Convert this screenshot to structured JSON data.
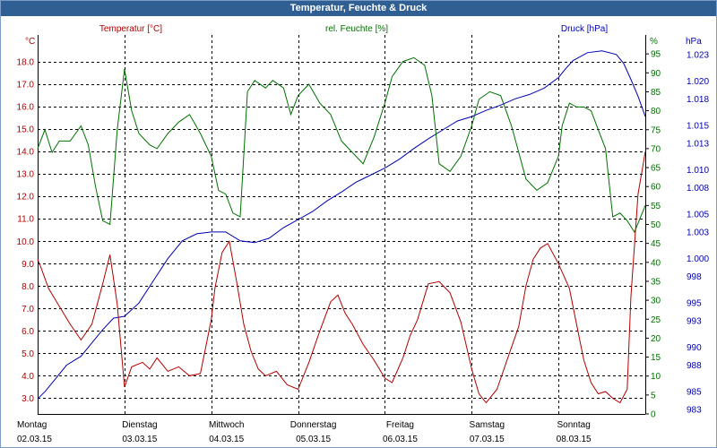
{
  "window": {
    "title": "Temperatur, Feuchte & Druck"
  },
  "colors": {
    "temperature": "#b00000",
    "humidity": "#007000",
    "pressure": "#0000b0",
    "grid": "#000000",
    "titlebar": "#2f5f93"
  },
  "chart_data": {
    "type": "line",
    "title": "Temperatur, Feuchte & Druck",
    "x_start": "02.03.15 00:00",
    "x_end": "08.03.15 24:00",
    "days": [
      {
        "weekday": "Montag",
        "date": "02.03.15"
      },
      {
        "weekday": "Dienstag",
        "date": "03.03.15"
      },
      {
        "weekday": "Mittwoch",
        "date": "04.03.15"
      },
      {
        "weekday": "Donnerstag",
        "date": "05.03.15"
      },
      {
        "weekday": "Freitag",
        "date": "06.03.15"
      },
      {
        "weekday": "Samstag",
        "date": "07.03.15"
      },
      {
        "weekday": "Sonntag",
        "date": "08.03.15"
      }
    ],
    "axes": {
      "temperature": {
        "label": "Temperatur [°C]",
        "unit": "°C",
        "ylim": [
          2.3,
          19.2
        ],
        "ticks": [
          "3.0",
          "4.0",
          "5.0",
          "6.0",
          "7.0",
          "8.0",
          "9.0",
          "10.0",
          "11.0",
          "12.0",
          "13.0",
          "14.0",
          "15.0",
          "16.0",
          "17.0",
          "18.0"
        ]
      },
      "humidity": {
        "label": "rel. Feuchte [%]",
        "unit": "%",
        "ylim": [
          0,
          100
        ],
        "ticks": [
          "0",
          "5",
          "10",
          "15",
          "20",
          "25",
          "30",
          "35",
          "40",
          "45",
          "50",
          "55",
          "60",
          "65",
          "70",
          "75",
          "80",
          "85",
          "90",
          "95"
        ]
      },
      "pressure": {
        "label": "Druck [hPa]",
        "unit": "hPa",
        "ylim": [
          982.5,
          1025.2
        ],
        "ticks": [
          "983",
          "985",
          "988",
          "990",
          "993",
          "995",
          "998",
          "1.000",
          "1.003",
          "1.005",
          "1.008",
          "1.010",
          "1.013",
          "1.015",
          "1.018",
          "1.020",
          "1.023"
        ]
      }
    },
    "grid": true,
    "series": [
      {
        "name": "Temperatur [°C]",
        "axis": "temperature",
        "color": "#b00000",
        "points": [
          [
            "02.03.15 00:00",
            9.2
          ],
          [
            "02.03.15 01:00",
            8.8
          ],
          [
            "02.03.15 03:00",
            7.9
          ],
          [
            "02.03.15 06:00",
            7.1
          ],
          [
            "02.03.15 09:00",
            6.3
          ],
          [
            "02.03.15 12:00",
            5.6
          ],
          [
            "02.03.15 15:00",
            6.3
          ],
          [
            "02.03.15 18:00",
            8.1
          ],
          [
            "02.03.15 20:00",
            9.4
          ],
          [
            "02.03.15 22:00",
            7.2
          ],
          [
            "03.03.15 00:00",
            3.5
          ],
          [
            "03.03.15 02:00",
            4.4
          ],
          [
            "03.03.15 05:00",
            4.6
          ],
          [
            "03.03.15 07:00",
            4.3
          ],
          [
            "03.03.15 09:00",
            4.8
          ],
          [
            "03.03.15 12:00",
            4.2
          ],
          [
            "03.03.15 15:00",
            4.4
          ],
          [
            "03.03.15 18:00",
            4.0
          ],
          [
            "03.03.15 21:00",
            4.1
          ],
          [
            "04.03.15 00:00",
            6.5
          ],
          [
            "04.03.15 01:00",
            7.9
          ],
          [
            "04.03.15 03:00",
            9.5
          ],
          [
            "04.03.15 05:00",
            10.0
          ],
          [
            "04.03.15 07:00",
            8.2
          ],
          [
            "04.03.15 09:00",
            6.3
          ],
          [
            "04.03.15 11:00",
            5.1
          ],
          [
            "04.03.15 13:00",
            4.3
          ],
          [
            "04.03.15 15:00",
            4.0
          ],
          [
            "04.03.15 18:00",
            4.2
          ],
          [
            "04.03.15 21:00",
            3.6
          ],
          [
            "05.03.15 00:00",
            3.4
          ],
          [
            "05.03.15 03:00",
            4.6
          ],
          [
            "05.03.15 06:00",
            6.0
          ],
          [
            "05.03.15 09:00",
            7.3
          ],
          [
            "05.03.15 11:00",
            7.6
          ],
          [
            "05.03.15 13:00",
            6.8
          ],
          [
            "05.03.15 15:00",
            6.3
          ],
          [
            "05.03.15 18:00",
            5.4
          ],
          [
            "05.03.15 21:00",
            4.7
          ],
          [
            "06.03.15 00:00",
            3.9
          ],
          [
            "06.03.15 02:00",
            3.7
          ],
          [
            "06.03.15 05:00",
            4.8
          ],
          [
            "06.03.15 07:00",
            5.8
          ],
          [
            "06.03.15 09:00",
            6.5
          ],
          [
            "06.03.15 12:00",
            8.1
          ],
          [
            "06.03.15 15:00",
            8.2
          ],
          [
            "06.03.15 18:00",
            7.7
          ],
          [
            "06.03.15 21:00",
            6.4
          ],
          [
            "07.03.15 00:00",
            4.3
          ],
          [
            "07.03.15 02:00",
            3.2
          ],
          [
            "07.03.15 04:00",
            2.8
          ],
          [
            "07.03.15 07:00",
            3.4
          ],
          [
            "07.03.15 10:00",
            4.8
          ],
          [
            "07.03.15 13:00",
            6.2
          ],
          [
            "07.03.15 15:00",
            8.0
          ],
          [
            "07.03.15 17:00",
            9.2
          ],
          [
            "07.03.15 19:00",
            9.7
          ],
          [
            "07.03.15 21:00",
            9.9
          ],
          [
            "08.03.15 00:00",
            9.0
          ],
          [
            "08.03.15 03:00",
            7.9
          ],
          [
            "08.03.15 05:00",
            6.3
          ],
          [
            "08.03.15 07:00",
            4.7
          ],
          [
            "08.03.15 09:00",
            3.7
          ],
          [
            "08.03.15 11:00",
            3.2
          ],
          [
            "08.03.15 13:00",
            3.3
          ],
          [
            "08.03.15 15:00",
            3.0
          ],
          [
            "08.03.15 17:00",
            2.8
          ],
          [
            "08.03.15 19:00",
            3.4
          ],
          [
            "08.03.15 20:00",
            7.5
          ],
          [
            "08.03.15 22:00",
            12.1
          ],
          [
            "08.03.15 24:00",
            14.0
          ]
        ]
      },
      {
        "name": "rel. Feuchte [%]",
        "axis": "humidity",
        "color": "#007000",
        "points": [
          [
            "02.03.15 00:00",
            70
          ],
          [
            "02.03.15 02:00",
            75
          ],
          [
            "02.03.15 04:00",
            69
          ],
          [
            "02.03.15 06:00",
            72
          ],
          [
            "02.03.15 09:00",
            72
          ],
          [
            "02.03.15 12:00",
            76
          ],
          [
            "02.03.15 14:00",
            71
          ],
          [
            "02.03.15 16:00",
            60
          ],
          [
            "02.03.15 18:00",
            51
          ],
          [
            "02.03.15 20:00",
            50
          ],
          [
            "02.03.15 22:00",
            75
          ],
          [
            "03.03.15 00:00",
            91
          ],
          [
            "03.03.15 02:00",
            80
          ],
          [
            "03.03.15 04:00",
            74
          ],
          [
            "03.03.15 07:00",
            71
          ],
          [
            "03.03.15 09:00",
            70
          ],
          [
            "03.03.15 12:00",
            74
          ],
          [
            "03.03.15 15:00",
            77
          ],
          [
            "03.03.15 18:00",
            79
          ],
          [
            "03.03.15 21:00",
            74
          ],
          [
            "04.03.15 00:00",
            68
          ],
          [
            "04.03.15 02:00",
            59
          ],
          [
            "04.03.15 04:00",
            58
          ],
          [
            "04.03.15 06:00",
            53
          ],
          [
            "04.03.15 08:00",
            52
          ],
          [
            "04.03.15 10:00",
            85
          ],
          [
            "04.03.15 12:00",
            88
          ],
          [
            "04.03.15 15:00",
            86
          ],
          [
            "04.03.15 17:00",
            88
          ],
          [
            "04.03.15 20:00",
            86
          ],
          [
            "04.03.15 22:00",
            79
          ],
          [
            "05.03.15 00:00",
            84
          ],
          [
            "05.03.15 03:00",
            87
          ],
          [
            "05.03.15 06:00",
            82
          ],
          [
            "05.03.15 09:00",
            79
          ],
          [
            "05.03.15 12:00",
            72
          ],
          [
            "05.03.15 15:00",
            69
          ],
          [
            "05.03.15 18:00",
            66
          ],
          [
            "05.03.15 21:00",
            73
          ],
          [
            "06.03.15 00:00",
            82
          ],
          [
            "06.03.15 02:00",
            89
          ],
          [
            "06.03.15 05:00",
            93
          ],
          [
            "06.03.15 08:00",
            94
          ],
          [
            "06.03.15 11:00",
            92
          ],
          [
            "06.03.15 13:00",
            84
          ],
          [
            "06.03.15 15:00",
            66
          ],
          [
            "06.03.15 18:00",
            64
          ],
          [
            "06.03.15 21:00",
            68
          ],
          [
            "07.03.15 00:00",
            76
          ],
          [
            "07.03.15 02:00",
            83
          ],
          [
            "07.03.15 05:00",
            85
          ],
          [
            "07.03.15 08:00",
            84
          ],
          [
            "07.03.15 11:00",
            76
          ],
          [
            "07.03.15 13:00",
            69
          ],
          [
            "07.03.15 15:00",
            62
          ],
          [
            "07.03.15 18:00",
            59
          ],
          [
            "07.03.15 21:00",
            61
          ],
          [
            "08.03.15 00:00",
            68
          ],
          [
            "08.03.15 01:00",
            76
          ],
          [
            "08.03.15 03:00",
            82
          ],
          [
            "08.03.15 05:00",
            81
          ],
          [
            "08.03.15 07:00",
            81
          ],
          [
            "08.03.15 09:00",
            80
          ],
          [
            "08.03.15 11:00",
            75
          ],
          [
            "08.03.15 13:00",
            70
          ],
          [
            "08.03.15 15:00",
            52
          ],
          [
            "08.03.15 17:00",
            53
          ],
          [
            "08.03.15 19:00",
            51
          ],
          [
            "08.03.15 21:00",
            48
          ],
          [
            "08.03.15 24:00",
            55
          ]
        ]
      },
      {
        "name": "Druck [hPa]",
        "axis": "pressure",
        "color": "#0000b0",
        "points": [
          [
            "02.03.15 00:00",
            984.2
          ],
          [
            "02.03.15 02:00",
            985.0
          ],
          [
            "02.03.15 05:00",
            986.5
          ],
          [
            "02.03.15 08:00",
            988.0
          ],
          [
            "02.03.15 12:00",
            989.0
          ],
          [
            "02.03.15 15:00",
            990.5
          ],
          [
            "02.03.15 18:00",
            992.0
          ],
          [
            "02.03.15 21:00",
            993.3
          ],
          [
            "03.03.15 00:00",
            993.5
          ],
          [
            "03.03.15 04:00",
            995.0
          ],
          [
            "03.03.15 08:00",
            997.5
          ],
          [
            "03.03.15 12:00",
            1000.0
          ],
          [
            "03.03.15 16:00",
            1002.0
          ],
          [
            "03.03.15 20:00",
            1002.8
          ],
          [
            "04.03.15 00:00",
            1003.0
          ],
          [
            "04.03.15 04:00",
            1003.0
          ],
          [
            "04.03.15 08:00",
            1002.0
          ],
          [
            "04.03.15 12:00",
            1001.8
          ],
          [
            "04.03.15 16:00",
            1002.3
          ],
          [
            "04.03.15 20:00",
            1003.5
          ],
          [
            "05.03.15 00:00",
            1004.4
          ],
          [
            "05.03.15 04:00",
            1005.3
          ],
          [
            "05.03.15 08:00",
            1006.5
          ],
          [
            "05.03.15 12:00",
            1007.5
          ],
          [
            "05.03.15 16:00",
            1008.6
          ],
          [
            "05.03.15 20:00",
            1009.4
          ],
          [
            "06.03.15 00:00",
            1010.2
          ],
          [
            "06.03.15 04:00",
            1011.2
          ],
          [
            "06.03.15 08:00",
            1012.4
          ],
          [
            "06.03.15 12:00",
            1013.5
          ],
          [
            "06.03.15 16:00",
            1014.5
          ],
          [
            "06.03.15 20:00",
            1015.5
          ],
          [
            "07.03.15 00:00",
            1016.0
          ],
          [
            "07.03.15 04:00",
            1016.7
          ],
          [
            "07.03.15 08:00",
            1017.3
          ],
          [
            "07.03.15 12:00",
            1018.0
          ],
          [
            "07.03.15 16:00",
            1018.5
          ],
          [
            "07.03.15 20:00",
            1019.2
          ],
          [
            "08.03.15 00:00",
            1020.4
          ],
          [
            "08.03.15 02:00",
            1021.4
          ],
          [
            "08.03.15 04:00",
            1022.3
          ],
          [
            "08.03.15 08:00",
            1023.2
          ],
          [
            "08.03.15 12:00",
            1023.4
          ],
          [
            "08.03.15 16:00",
            1023.0
          ],
          [
            "08.03.15 18:00",
            1022.0
          ],
          [
            "08.03.15 20:00",
            1020.2
          ],
          [
            "08.03.15 22:00",
            1018.3
          ],
          [
            "08.03.15 24:00",
            1016.0
          ]
        ]
      }
    ]
  }
}
